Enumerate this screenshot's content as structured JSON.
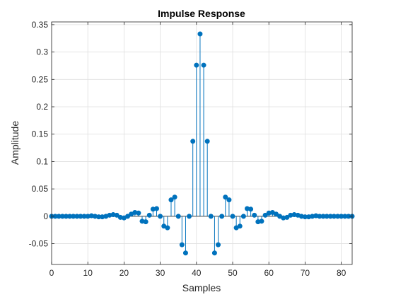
{
  "chart_data": {
    "type": "stem",
    "title": "Impulse Response",
    "xlabel": "Samples",
    "ylabel": "Amplitude",
    "xlim": [
      0,
      83
    ],
    "ylim": [
      -0.088,
      0.355
    ],
    "xticks": [
      0,
      10,
      20,
      30,
      40,
      50,
      60,
      70,
      80
    ],
    "yticks": [
      -0.05,
      0,
      0.05,
      0.1,
      0.15,
      0.2,
      0.25,
      0.3,
      0.35
    ],
    "ytick_labels": [
      "-0.05",
      "0",
      "0.05",
      "0.1",
      "0.15",
      "0.2",
      "0.25",
      "0.3",
      "0.35"
    ],
    "grid": true,
    "color": "#0072bd",
    "x": [
      0,
      1,
      2,
      3,
      4,
      5,
      6,
      7,
      8,
      9,
      10,
      11,
      12,
      13,
      14,
      15,
      16,
      17,
      18,
      19,
      20,
      21,
      22,
      23,
      24,
      25,
      26,
      27,
      28,
      29,
      30,
      31,
      32,
      33,
      34,
      35,
      36,
      37,
      38,
      39,
      40,
      41,
      42,
      43,
      44,
      45,
      46,
      47,
      48,
      49,
      50,
      51,
      52,
      53,
      54,
      55,
      56,
      57,
      58,
      59,
      60,
      61,
      62,
      63,
      64,
      65,
      66,
      67,
      68,
      69,
      70,
      71,
      72,
      73,
      74,
      75,
      76,
      77,
      78,
      79,
      80,
      81,
      82,
      83
    ],
    "values": [
      0,
      0,
      0,
      0,
      0,
      0,
      0,
      0,
      0,
      0,
      0,
      0.001,
      0,
      -0.001,
      -0.001,
      0,
      0.002,
      0.003,
      0.002,
      -0.002,
      -0.003,
      0,
      0.004,
      0.007,
      0.006,
      -0.009,
      -0.01,
      0.002,
      0.013,
      0.014,
      0,
      -0.018,
      -0.021,
      0.03,
      0.035,
      0,
      -0.052,
      -0.067,
      0,
      0.137,
      0.276,
      0.333,
      0.276,
      0.137,
      0,
      -0.067,
      -0.052,
      0,
      0.035,
      0.03,
      0,
      -0.021,
      -0.018,
      0,
      0.014,
      0.013,
      0.002,
      -0.01,
      -0.009,
      0.002,
      0.006,
      0.007,
      0.004,
      0,
      -0.003,
      -0.002,
      0.002,
      0.003,
      0.002,
      0,
      -0.001,
      -0.001,
      0,
      0.001,
      0,
      0,
      0,
      0,
      0,
      0,
      0,
      0,
      0,
      0
    ]
  }
}
